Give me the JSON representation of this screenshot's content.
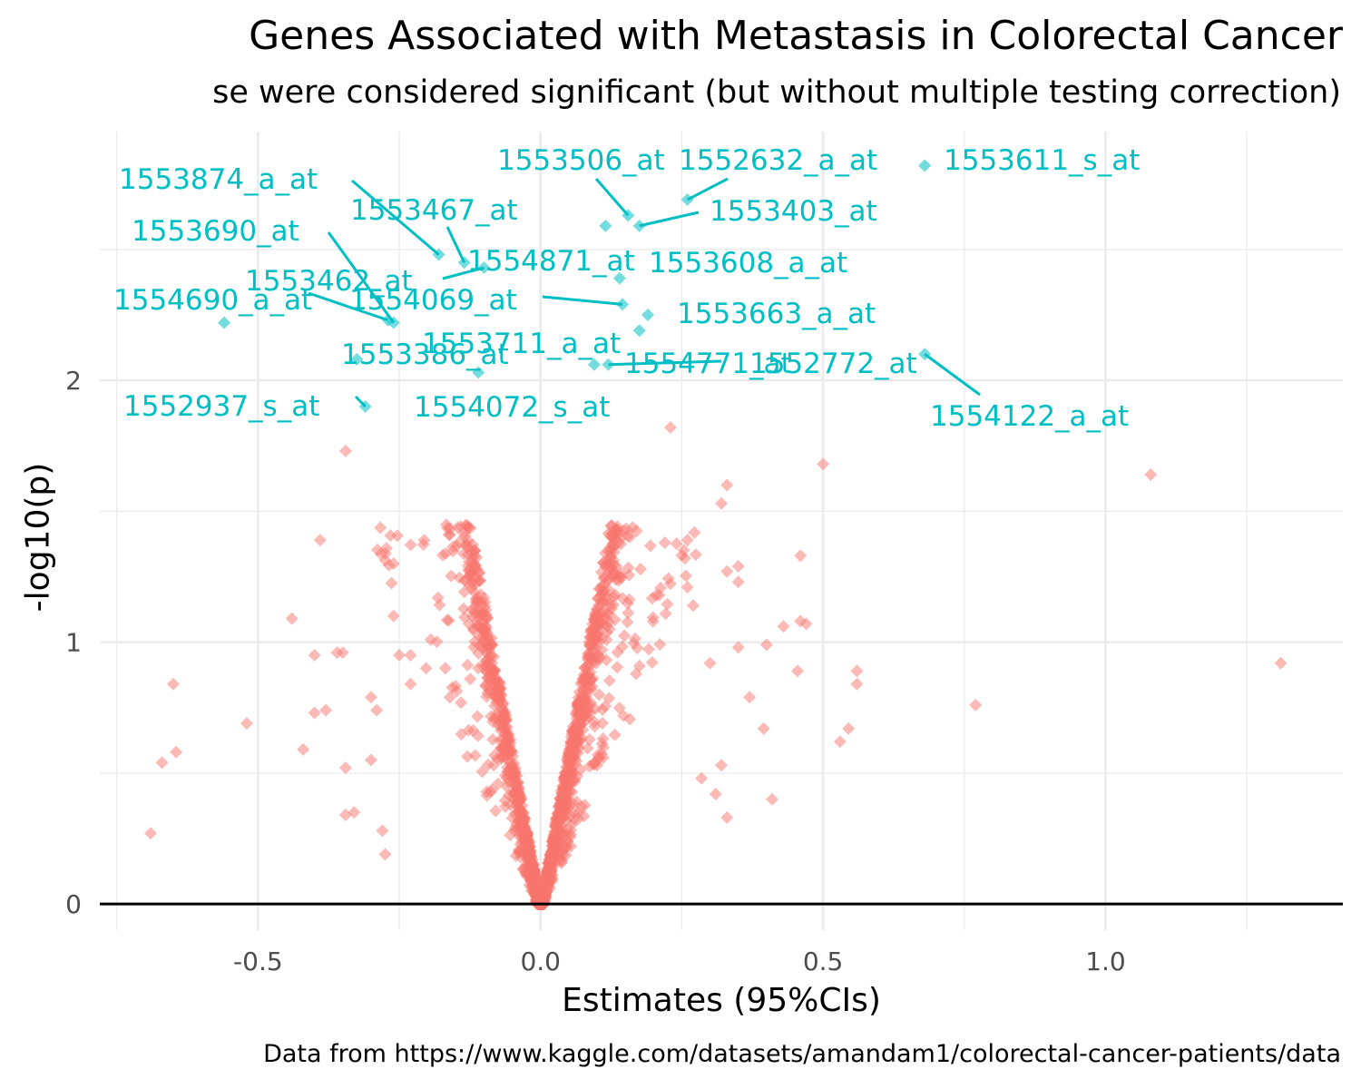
{
  "chart_data": {
    "type": "scatter",
    "title": "Genes Associated with Metastasis in Colorectal Cancer",
    "subtitle": "se were considered significant (but without multiple testing correction)",
    "xlabel": "Estimates (95%CIs)",
    "ylabel": "-log10(p)",
    "caption": "Data from https://www.kaggle.com/datasets/amandam1/colorectal-cancer-patients/data",
    "xlim": [
      -0.78,
      1.42
    ],
    "ylim": [
      -0.1,
      2.95
    ],
    "x_ticks": [
      {
        "value": -0.5,
        "label": "-0.5"
      },
      {
        "value": 0.0,
        "label": "0.0"
      },
      {
        "value": 0.5,
        "label": "0.5"
      },
      {
        "value": 1.0,
        "label": "1.0"
      }
    ],
    "y_ticks": [
      {
        "value": 0,
        "label": "0"
      },
      {
        "value": 1,
        "label": "1"
      },
      {
        "value": 2,
        "label": "2"
      }
    ],
    "grid": true,
    "reference_line_y": 0,
    "colors": {
      "significant": "#00BFC4",
      "non_significant": "#F8766D",
      "background": "#ffffff",
      "grid": "#ebebeb",
      "axis_text": "#4d4d4d"
    },
    "marker": "diamond",
    "series": [
      {
        "name": "",
        "color": "#00BFC4",
        "points": [
          {
            "label": "1553611_s_at",
            "x": 0.68,
            "y": 2.82
          },
          {
            "label": "1552632_a_at",
            "x": 0.26,
            "y": 2.69
          },
          {
            "label": "1553506_at",
            "x": 0.155,
            "y": 2.63
          },
          {
            "label": "1553403_at",
            "x": 0.175,
            "y": 2.59
          },
          {
            "label": "",
            "x": 0.115,
            "y": 2.59
          },
          {
            "label": "1553874_a_at",
            "x": -0.18,
            "y": 2.48
          },
          {
            "label": "1553467_at",
            "x": -0.135,
            "y": 2.45
          },
          {
            "label": "1554871_at",
            "x": -0.1,
            "y": 2.43
          },
          {
            "label": "1553608_a_at",
            "x": 0.14,
            "y": 2.39
          },
          {
            "label": "1554069_at",
            "x": 0.145,
            "y": 2.29
          },
          {
            "label": "1553663_a_at",
            "x": 0.19,
            "y": 2.25
          },
          {
            "label": "1553462_at",
            "x": -0.27,
            "y": 2.23
          },
          {
            "label": "1553690_at",
            "x": -0.26,
            "y": 2.22
          },
          {
            "label": "1554690_a_at",
            "x": -0.56,
            "y": 2.22
          },
          {
            "label": "1553711_a_at",
            "x": 0.175,
            "y": 2.19
          },
          {
            "label": "1554122_a_at",
            "x": 0.68,
            "y": 2.1
          },
          {
            "label": "1553386_at",
            "x": -0.325,
            "y": 2.08
          },
          {
            "label": "1554771_at",
            "x": 0.12,
            "y": 2.06
          },
          {
            "label": "1552772_at",
            "x": 0.095,
            "y": 2.06
          },
          {
            "label": "1554072_s_at",
            "x": -0.11,
            "y": 2.03
          },
          {
            "label": "1552937_s_at",
            "x": -0.31,
            "y": 1.9
          }
        ]
      },
      {
        "name": "",
        "color": "#F8766D",
        "points": [
          {
            "x": 1.31,
            "y": 0.92
          },
          {
            "x": 1.08,
            "y": 1.64
          },
          {
            "x": 0.77,
            "y": 0.76
          },
          {
            "x": 0.5,
            "y": 1.68
          },
          {
            "x": 0.56,
            "y": 0.89
          },
          {
            "x": 0.56,
            "y": 0.84
          },
          {
            "x": 0.545,
            "y": 0.67
          },
          {
            "x": 0.53,
            "y": 0.62
          },
          {
            "x": 0.47,
            "y": 1.07
          },
          {
            "x": 0.46,
            "y": 1.08
          },
          {
            "x": 0.455,
            "y": 0.89
          },
          {
            "x": 0.46,
            "y": 1.33
          },
          {
            "x": 0.43,
            "y": 1.06
          },
          {
            "x": 0.41,
            "y": 0.4
          },
          {
            "x": 0.4,
            "y": 0.99
          },
          {
            "x": 0.395,
            "y": 0.67
          },
          {
            "x": 0.37,
            "y": 0.79
          },
          {
            "x": 0.35,
            "y": 0.98
          },
          {
            "x": 0.35,
            "y": 1.23
          },
          {
            "x": 0.35,
            "y": 1.29
          },
          {
            "x": 0.33,
            "y": 1.6
          },
          {
            "x": 0.33,
            "y": 1.27
          },
          {
            "x": 0.32,
            "y": 1.53
          },
          {
            "x": 0.33,
            "y": 0.33
          },
          {
            "x": 0.32,
            "y": 0.53
          },
          {
            "x": 0.31,
            "y": 0.42
          },
          {
            "x": 0.3,
            "y": 0.92
          },
          {
            "x": 0.285,
            "y": 0.48
          },
          {
            "x": 0.27,
            "y": 1.14
          },
          {
            "x": 0.26,
            "y": 1.39
          },
          {
            "x": 0.26,
            "y": 1.21
          },
          {
            "x": 0.23,
            "y": 1.82
          },
          {
            "x": 0.22,
            "y": 1.38
          },
          {
            "x": 0.21,
            "y": 1.18
          },
          {
            "x": -0.39,
            "y": 1.39
          },
          {
            "x": -0.44,
            "y": 1.09
          },
          {
            "x": -0.4,
            "y": 0.95
          },
          {
            "x": -0.36,
            "y": 0.96
          },
          {
            "x": -0.35,
            "y": 0.96
          },
          {
            "x": -0.38,
            "y": 0.74
          },
          {
            "x": -0.4,
            "y": 0.73
          },
          {
            "x": -0.42,
            "y": 0.59
          },
          {
            "x": -0.52,
            "y": 0.69
          },
          {
            "x": -0.65,
            "y": 0.84
          },
          {
            "x": -0.67,
            "y": 0.54
          },
          {
            "x": -0.645,
            "y": 0.58
          },
          {
            "x": -0.69,
            "y": 0.27
          },
          {
            "x": -0.345,
            "y": 1.73
          },
          {
            "x": -0.3,
            "y": 0.79
          },
          {
            "x": -0.29,
            "y": 0.74
          },
          {
            "x": -0.345,
            "y": 0.52
          },
          {
            "x": -0.3,
            "y": 0.55
          },
          {
            "x": -0.28,
            "y": 0.28
          },
          {
            "x": -0.275,
            "y": 0.19
          },
          {
            "x": -0.345,
            "y": 0.34
          },
          {
            "x": -0.33,
            "y": 0.35
          },
          {
            "x": -0.25,
            "y": 0.95
          },
          {
            "x": -0.26,
            "y": 1.3
          },
          {
            "x": -0.26,
            "y": 1.1
          },
          {
            "x": -0.23,
            "y": 0.95
          },
          {
            "x": -0.23,
            "y": 0.84
          }
        ]
      }
    ],
    "dense_cluster": {
      "description_hidden": true,
      "count": 1700,
      "color": "#F8766D"
    }
  }
}
